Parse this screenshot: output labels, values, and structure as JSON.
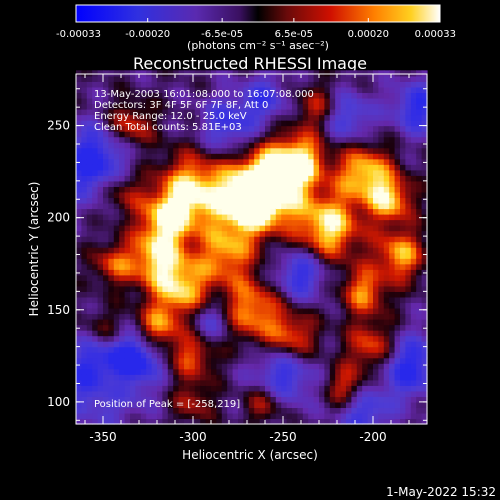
{
  "chart_data": {
    "type": "heatmap",
    "title": "Reconstructed RHESSI Image",
    "xlabel": "Heliocentric X (arcsec)",
    "ylabel": "Heliocentric Y (arcsec)",
    "xlim": [
      -365,
      -170
    ],
    "ylim": [
      88,
      278
    ],
    "x_ticks": [
      -350,
      -300,
      -250,
      -200
    ],
    "y_ticks": [
      100,
      150,
      200,
      250
    ],
    "colorbar": {
      "min": -0.00033,
      "max": 0.00033,
      "tick_values": [
        -0.00033,
        -0.0002,
        -6.5e-05,
        6.5e-05,
        0.0002,
        0.00033
      ],
      "tick_labels": [
        "-0.00033",
        "-0.00020",
        "-6.5e-05",
        "6.5e-05",
        "0.00020",
        "0.00033"
      ],
      "unit_label": "(photons cm⁻² s⁻¹ asec⁻²)"
    },
    "annotations": [
      "13-May-2003 16:01:08.000 to 16:07:08.000",
      "Detectors: 3F 4F 5F 6F 7F 8F, Att 0",
      "Energy Range: 12.0 - 25.0 keV",
      "Clean    Total counts: 5.81E+03"
    ],
    "peak_label": "Position of Peak = [-258,219]",
    "peak": {
      "x": -258,
      "y": 219
    },
    "grid": false
  },
  "footer": {
    "timestamp": "1-May-2022 15:32"
  },
  "colors": {
    "background": "#000000",
    "axes": "#ffffff"
  }
}
